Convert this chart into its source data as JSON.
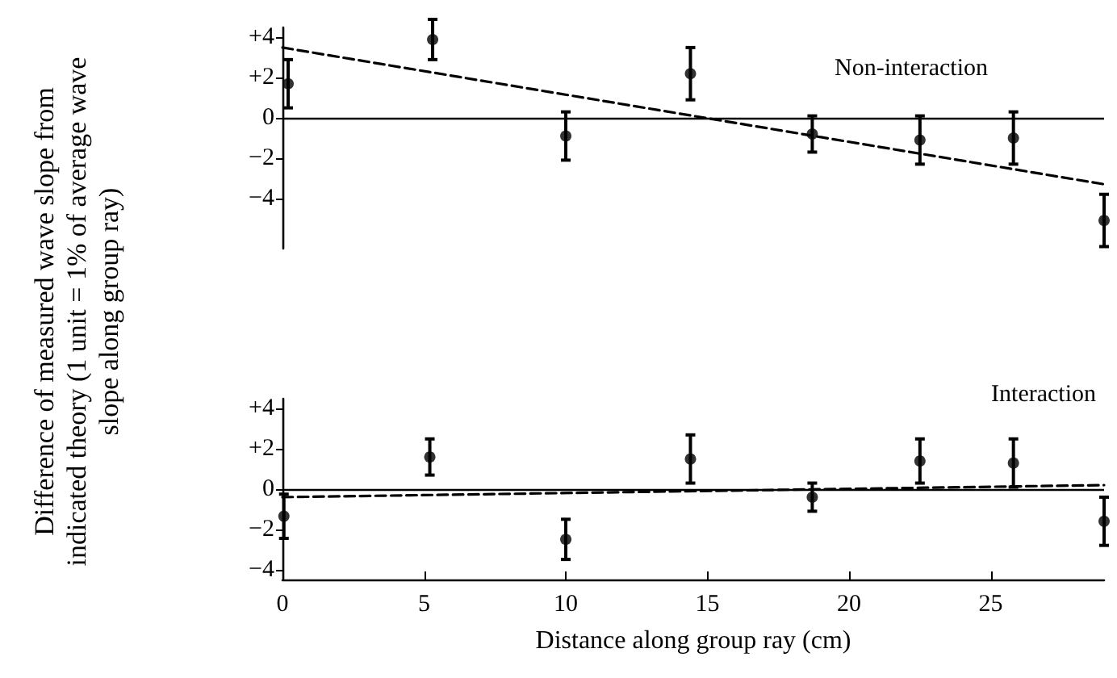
{
  "chart_data": [
    {
      "type": "scatter",
      "title": "Non-interaction",
      "ylabel": "Difference of measured wave slope from indicated theory (1 unit = 1% of average wave slope along group ray)",
      "xlim": [
        0,
        29
      ],
      "ylim": [
        -6.5,
        4.5
      ],
      "yticks": [
        {
          "value": 4,
          "label": "+4"
        },
        {
          "value": 2,
          "label": "+2"
        },
        0,
        {
          "value": -2,
          "label": "−2"
        },
        {
          "value": -4,
          "label": "−4"
        }
      ],
      "tick_labels": "y",
      "grid": false,
      "ref_lines": [
        {
          "axis": "y",
          "value": 0,
          "color": "#000000",
          "line_style": "solid"
        }
      ],
      "series": [
        {
          "marker": "circle",
          "color": "#000000",
          "x": [
            0.2,
            5.3,
            10.0,
            14.4,
            18.7,
            22.5,
            25.8,
            29.0
          ],
          "values": [
            1.7,
            3.9,
            -0.9,
            2.2,
            -0.8,
            -1.1,
            -1.0,
            -5.1
          ],
          "errors": [
            1.2,
            1.0,
            1.2,
            1.3,
            0.9,
            1.2,
            1.3,
            1.3
          ]
        },
        {
          "type": "line",
          "color": "#000000",
          "line_style": "dashed",
          "x": [
            0,
            29
          ],
          "values": [
            3.5,
            -3.3
          ]
        }
      ]
    },
    {
      "type": "scatter",
      "title": "Interaction",
      "xlabel": "Distance along group ray (cm)",
      "xlim": [
        0,
        29
      ],
      "xticks": [
        0,
        5,
        10,
        15,
        20,
        25
      ],
      "ylim": [
        -4.5,
        4.5
      ],
      "yticks": [
        {
          "value": 4,
          "label": "+4"
        },
        {
          "value": 2,
          "label": "+2"
        },
        0,
        {
          "value": -2,
          "label": "−2"
        },
        {
          "value": -4,
          "label": "−4"
        }
      ],
      "grid": false,
      "ref_lines": [
        {
          "axis": "y",
          "value": 0,
          "color": "#000000",
          "line_style": "solid"
        }
      ],
      "series": [
        {
          "marker": "circle",
          "color": "#000000",
          "x": [
            0.05,
            5.2,
            10.0,
            14.4,
            18.7,
            22.5,
            25.8,
            29.0
          ],
          "values": [
            -1.35,
            1.6,
            -2.5,
            1.5,
            -0.4,
            1.4,
            1.3,
            -1.6
          ],
          "errors": [
            1.1,
            0.9,
            1.0,
            1.2,
            0.7,
            1.1,
            1.2,
            1.2
          ]
        },
        {
          "type": "line",
          "color": "#000000",
          "line_style": "dashed",
          "x": [
            0,
            29
          ],
          "values": [
            -0.4,
            0.2
          ]
        }
      ]
    }
  ]
}
